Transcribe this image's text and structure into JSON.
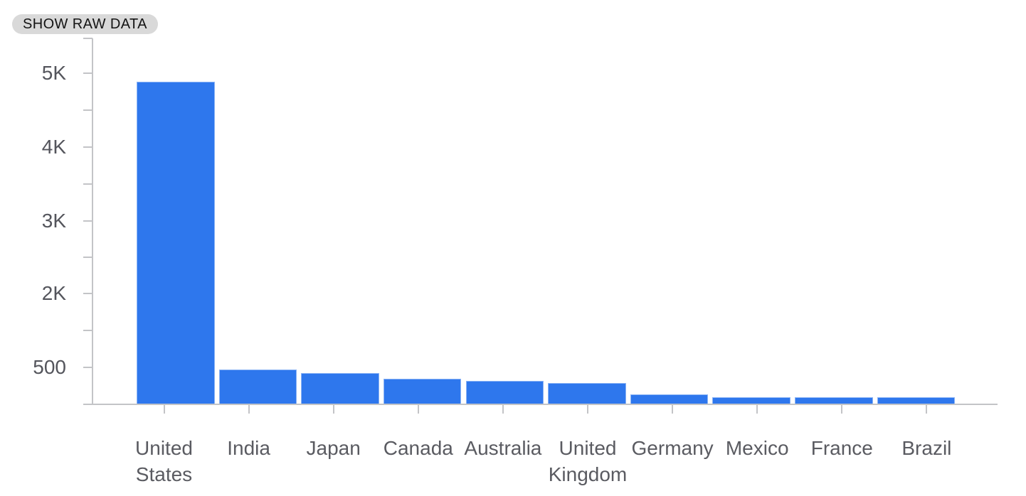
{
  "button": {
    "label": "SHOW RAW DATA"
  },
  "colors": {
    "bar_blue": "#2e77ed",
    "axis_gray": "#c3c4c7",
    "y_label_gray": "#54555c",
    "x_label_gray": "#5a5b61",
    "button_bg": "#d9d9d9",
    "button_text": "#141414"
  },
  "chart_data": {
    "type": "bar",
    "title": "",
    "xlabel": "",
    "ylabel": "",
    "categories": [
      "United States",
      "India",
      "Japan",
      "Canada",
      "Australia",
      "United Kingdom",
      "Germany",
      "Mexico",
      "France",
      "Brazil"
    ],
    "category_label_lines": [
      [
        "United",
        "States"
      ],
      [
        "India"
      ],
      [
        "Japan"
      ],
      [
        "Canada"
      ],
      [
        "Australia"
      ],
      [
        "United",
        "Kingdom"
      ],
      [
        "Germany"
      ],
      [
        "Mexico"
      ],
      [
        "France"
      ],
      [
        "Brazil"
      ]
    ],
    "values": [
      4880,
      465,
      425,
      340,
      310,
      290,
      130,
      95,
      95,
      90
    ],
    "series_color": "#2e77ed",
    "y_axis": {
      "tick_labels": [
        "5K",
        "4K",
        "3K",
        "2K",
        "500"
      ],
      "tick_values": [
        5000,
        4000,
        3000,
        2000,
        500
      ],
      "baseline_value": 0,
      "ylim": [
        0,
        5500
      ],
      "grid": false,
      "minor_ticks": true
    },
    "legend_position": "none"
  }
}
